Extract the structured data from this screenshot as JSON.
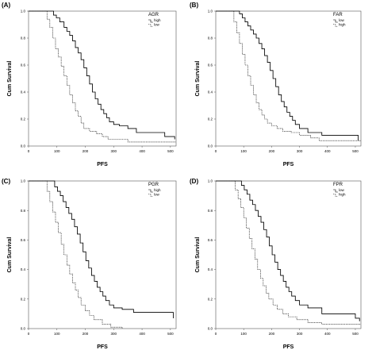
{
  "panels": [
    {
      "letter": "(A)",
      "legend_title": "AGR",
      "entries": [
        "high",
        "low"
      ]
    },
    {
      "letter": "(B)",
      "legend_title": "FAR",
      "entries": [
        "low",
        "high"
      ]
    },
    {
      "letter": "(C)",
      "legend_title": "PGR",
      "entries": [
        "high",
        "low"
      ]
    },
    {
      "letter": "(D)",
      "legend_title": "FPR",
      "entries": [
        "low",
        "high"
      ]
    }
  ],
  "chart_data": [
    {
      "type": "line",
      "step": true,
      "xlabel": "PFS",
      "ylabel": "Cum Survival",
      "xlim": [
        0,
        520
      ],
      "ylim": [
        0,
        1.0
      ],
      "xticks": [
        "0",
        "100",
        "200",
        "300",
        "400",
        "500"
      ],
      "yticks": [
        "0.0",
        "0.2",
        "0.4",
        "0.6",
        "0.8",
        "1.0"
      ],
      "grid": false,
      "legend": {
        "title": "AGR",
        "position": "top-right"
      },
      "series": [
        {
          "name": "high",
          "style": "solid",
          "x": [
            0,
            75,
            88,
            98,
            110,
            125,
            135,
            145,
            155,
            165,
            175,
            185,
            195,
            205,
            215,
            225,
            235,
            245,
            255,
            265,
            275,
            285,
            300,
            320,
            350,
            380,
            480,
            515
          ],
          "y": [
            1.0,
            1.0,
            0.97,
            0.95,
            0.92,
            0.88,
            0.85,
            0.82,
            0.78,
            0.73,
            0.69,
            0.64,
            0.58,
            0.52,
            0.46,
            0.4,
            0.35,
            0.31,
            0.27,
            0.24,
            0.21,
            0.18,
            0.16,
            0.15,
            0.13,
            0.1,
            0.07,
            0.05
          ]
        },
        {
          "name": "low",
          "style": "dashed",
          "x": [
            0,
            55,
            65,
            75,
            85,
            95,
            105,
            115,
            125,
            135,
            145,
            155,
            165,
            175,
            185,
            195,
            215,
            240,
            260,
            280,
            350,
            520
          ],
          "y": [
            1.0,
            1.0,
            0.94,
            0.88,
            0.8,
            0.72,
            0.66,
            0.59,
            0.52,
            0.45,
            0.38,
            0.32,
            0.26,
            0.22,
            0.17,
            0.13,
            0.11,
            0.09,
            0.07,
            0.05,
            0.03,
            0.03
          ]
        }
      ]
    },
    {
      "type": "line",
      "step": true,
      "xlabel": "PFS",
      "ylabel": "Cum Survival",
      "xlim": [
        0,
        520
      ],
      "ylim": [
        0,
        1.0
      ],
      "xticks": [
        "0",
        "100",
        "200",
        "300",
        "400",
        "500"
      ],
      "yticks": [
        "0.0",
        "0.2",
        "0.4",
        "0.6",
        "0.8",
        "1.0"
      ],
      "grid": false,
      "legend": {
        "title": "FAR",
        "position": "top-right"
      },
      "series": [
        {
          "name": "low",
          "style": "solid",
          "x": [
            0,
            75,
            85,
            95,
            105,
            115,
            125,
            135,
            145,
            155,
            165,
            175,
            185,
            195,
            205,
            215,
            225,
            235,
            245,
            255,
            265,
            275,
            285,
            300,
            330,
            380,
            510
          ],
          "y": [
            1.0,
            1.0,
            0.98,
            0.95,
            0.92,
            0.89,
            0.86,
            0.83,
            0.8,
            0.76,
            0.72,
            0.67,
            0.62,
            0.56,
            0.5,
            0.44,
            0.38,
            0.33,
            0.29,
            0.25,
            0.22,
            0.19,
            0.16,
            0.13,
            0.1,
            0.08,
            0.04
          ]
        },
        {
          "name": "high",
          "style": "dashed",
          "x": [
            0,
            55,
            65,
            75,
            85,
            95,
            105,
            115,
            125,
            135,
            145,
            155,
            165,
            175,
            185,
            200,
            220,
            240,
            270,
            300,
            340,
            370,
            520
          ],
          "y": [
            1.0,
            1.0,
            0.92,
            0.84,
            0.76,
            0.68,
            0.6,
            0.52,
            0.45,
            0.38,
            0.32,
            0.27,
            0.23,
            0.2,
            0.17,
            0.15,
            0.13,
            0.11,
            0.1,
            0.08,
            0.06,
            0.04,
            0.04
          ]
        }
      ]
    },
    {
      "type": "line",
      "step": true,
      "xlabel": "PFS",
      "ylabel": "Cum Survival",
      "xlim": [
        0,
        520
      ],
      "ylim": [
        0,
        1.0
      ],
      "xticks": [
        "0",
        "100",
        "200",
        "300",
        "400",
        "500"
      ],
      "yticks": [
        "0.0",
        "0.2",
        "0.4",
        "0.6",
        "0.8",
        "1.0"
      ],
      "grid": false,
      "legend": {
        "title": "PGR",
        "position": "top-right"
      },
      "series": [
        {
          "name": "high",
          "style": "solid",
          "x": [
            0,
            80,
            92,
            102,
            112,
            122,
            132,
            142,
            152,
            162,
            172,
            182,
            192,
            202,
            212,
            222,
            232,
            242,
            252,
            262,
            272,
            285,
            300,
            330,
            370,
            510
          ],
          "y": [
            1.0,
            1.0,
            0.96,
            0.93,
            0.9,
            0.86,
            0.82,
            0.78,
            0.74,
            0.69,
            0.64,
            0.58,
            0.52,
            0.46,
            0.41,
            0.36,
            0.32,
            0.28,
            0.25,
            0.22,
            0.19,
            0.16,
            0.14,
            0.13,
            0.11,
            0.07
          ]
        },
        {
          "name": "low",
          "style": "dashed",
          "x": [
            0,
            55,
            65,
            75,
            85,
            95,
            105,
            115,
            125,
            135,
            145,
            155,
            165,
            175,
            185,
            200,
            215,
            230,
            260,
            290,
            330
          ],
          "y": [
            1.0,
            1.0,
            0.93,
            0.86,
            0.79,
            0.72,
            0.65,
            0.57,
            0.5,
            0.43,
            0.37,
            0.31,
            0.26,
            0.21,
            0.16,
            0.12,
            0.09,
            0.06,
            0.03,
            0.01,
            0.0
          ]
        }
      ]
    },
    {
      "type": "line",
      "step": true,
      "xlabel": "PFS",
      "ylabel": "Cum Survival",
      "xlim": [
        0,
        520
      ],
      "ylim": [
        0,
        1.0
      ],
      "xticks": [
        "0",
        "100",
        "200",
        "300",
        "400",
        "500"
      ],
      "yticks": [
        "0.0",
        "0.2",
        "0.4",
        "0.6",
        "0.8",
        "1.0"
      ],
      "grid": false,
      "legend": {
        "title": "FPR",
        "position": "top-right"
      },
      "series": [
        {
          "name": "low",
          "style": "solid",
          "x": [
            0,
            80,
            92,
            102,
            112,
            122,
            132,
            142,
            152,
            162,
            172,
            182,
            192,
            202,
            212,
            222,
            232,
            242,
            252,
            262,
            272,
            285,
            300,
            330,
            380,
            500,
            515
          ],
          "y": [
            1.0,
            1.0,
            0.97,
            0.94,
            0.91,
            0.87,
            0.84,
            0.8,
            0.76,
            0.72,
            0.67,
            0.62,
            0.56,
            0.5,
            0.45,
            0.4,
            0.36,
            0.32,
            0.28,
            0.25,
            0.22,
            0.19,
            0.16,
            0.14,
            0.1,
            0.07,
            0.05
          ]
        },
        {
          "name": "high",
          "style": "dashed",
          "x": [
            0,
            60,
            70,
            80,
            90,
            100,
            110,
            120,
            130,
            140,
            150,
            160,
            170,
            180,
            190,
            205,
            220,
            240,
            260,
            290,
            330,
            380,
            520
          ],
          "y": [
            1.0,
            1.0,
            0.94,
            0.88,
            0.82,
            0.75,
            0.68,
            0.61,
            0.54,
            0.47,
            0.4,
            0.34,
            0.29,
            0.24,
            0.2,
            0.16,
            0.13,
            0.1,
            0.08,
            0.06,
            0.04,
            0.03,
            0.03
          ]
        }
      ]
    }
  ]
}
